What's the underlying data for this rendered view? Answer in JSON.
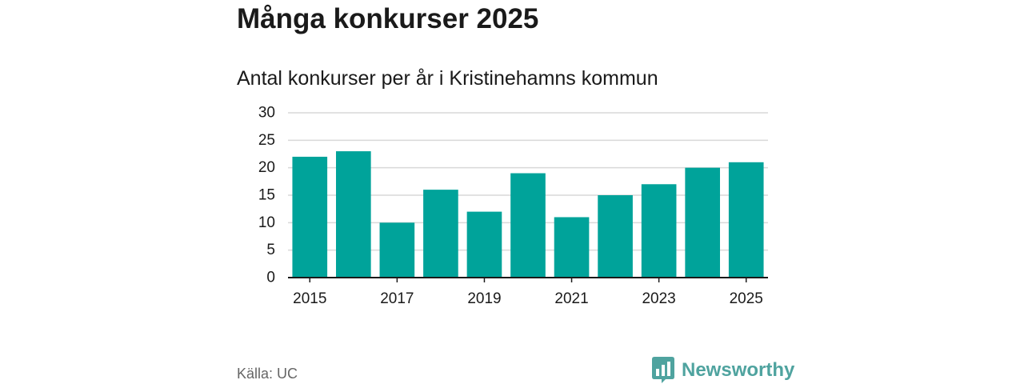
{
  "title": "Många konkurser 2025",
  "chart_data": {
    "type": "bar",
    "title": "Antal konkurser per år i Kristinehamns kommun",
    "categories": [
      2015,
      2016,
      2017,
      2018,
      2019,
      2020,
      2021,
      2022,
      2023,
      2024,
      2025
    ],
    "values": [
      22,
      23,
      10,
      16,
      12,
      19,
      11,
      15,
      17,
      20,
      21
    ],
    "x_tick_labels": [
      "2015",
      "2017",
      "2019",
      "2021",
      "2023",
      "2025"
    ],
    "y_ticks": [
      0,
      5,
      10,
      15,
      20,
      25,
      30
    ],
    "ylim": [
      0,
      30
    ],
    "grid": true,
    "legend": "none",
    "colors": {
      "bar": "#00a39a",
      "grid": "#d9d9d9",
      "axis": "#1a1a1a"
    }
  },
  "footer": {
    "source": "Källa: UC",
    "brand": "Newsworthy",
    "brand_icon": "newsworthy-logo-icon"
  }
}
